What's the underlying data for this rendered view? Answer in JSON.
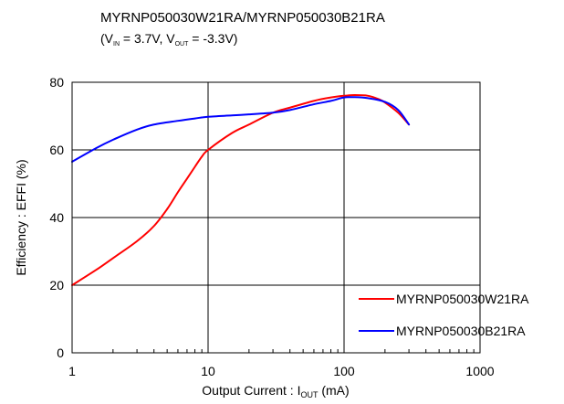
{
  "chart_data": {
    "type": "line",
    "title": "MYRNP050030W21RA/MYRNP050030B21RA",
    "subtitle": {
      "open": "(V",
      "vin_sub": "IN",
      "mid": " = 3.7V, V",
      "vout_sub": "OUT",
      "end": " = -3.3V)"
    },
    "xlabel": {
      "main": "Output  Current : I",
      "sub": "OUT",
      "unit": "  (mA)"
    },
    "ylabel": "Efficiency : EFFI (%)",
    "x_scale": "log",
    "xlim": [
      1,
      1000
    ],
    "ylim": [
      0,
      80
    ],
    "xticks": [
      "1",
      "10",
      "100",
      "1000"
    ],
    "yticks": [
      "0",
      "20",
      "40",
      "60",
      "80"
    ],
    "grid": true,
    "legend_position": "bottom-right",
    "series": [
      {
        "name": "MYRNP050030W21RA",
        "color": "#ff0000",
        "x": [
          1,
          1.5,
          2,
          3,
          4,
          5,
          6,
          7,
          8,
          9,
          10,
          15,
          20,
          30,
          40,
          60,
          80,
          100,
          120,
          150,
          180,
          200,
          250,
          300
        ],
        "y": [
          20,
          24.5,
          28,
          33,
          37.5,
          42.5,
          47.5,
          51.5,
          55,
          58,
          60,
          65,
          67.5,
          71,
          72.5,
          74.5,
          75.5,
          76,
          76.2,
          76,
          75,
          74,
          71,
          67.5
        ]
      },
      {
        "name": "MYRNP050030B21RA",
        "color": "#0000ff",
        "x": [
          1,
          1.5,
          2,
          3,
          4,
          6,
          8,
          10,
          15,
          20,
          30,
          40,
          60,
          80,
          100,
          120,
          150,
          200,
          250,
          300
        ],
        "y": [
          56.5,
          60.5,
          63,
          66,
          67.5,
          68.6,
          69.3,
          69.8,
          70.2,
          70.5,
          71,
          71.8,
          73.5,
          74.5,
          75.5,
          75.6,
          75.3,
          74.2,
          71.8,
          67.5
        ]
      }
    ]
  }
}
